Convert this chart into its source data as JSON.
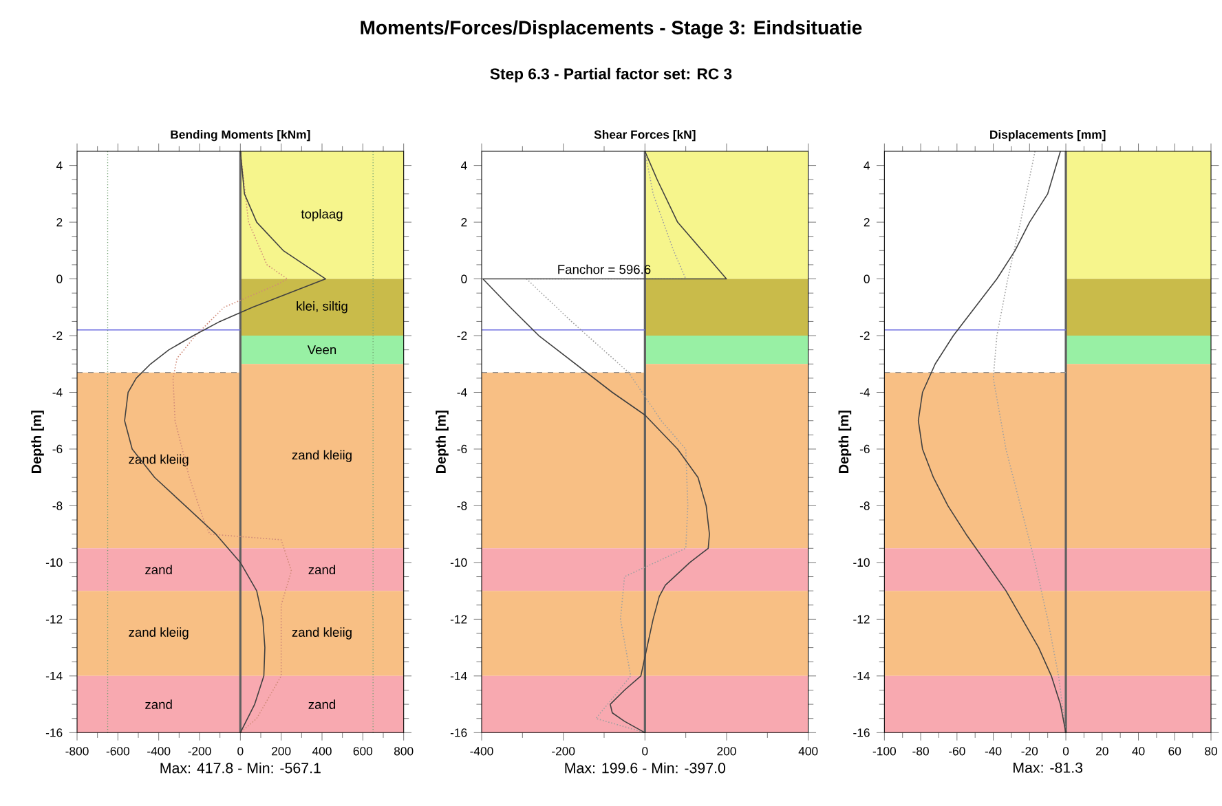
{
  "chart_data": [
    {
      "type": "line",
      "title": "Bending Moments [kNm]",
      "xlabel": "Max: 417.8 - Min: -567.1",
      "ylabel": "Depth [m]",
      "annotations": [
        "Moments/Forces/Displacements - Stage 3: Eindsituatie",
        "Step 6.3 - Partial factor set: RC 3"
      ],
      "xlim": [
        -800,
        800
      ],
      "ylim": [
        -16,
        4.5
      ],
      "xticks": [
        -800,
        -600,
        -400,
        -200,
        0,
        200,
        400,
        600,
        800
      ],
      "yticks": [
        -16,
        -14,
        -12,
        -10,
        -8,
        -6,
        -4,
        -2,
        0,
        2,
        4
      ],
      "bands": [
        {
          "axis": "y",
          "from": 0,
          "to": 4.5,
          "label": "toplaag",
          "color": "#f6f58c"
        },
        {
          "axis": "y",
          "from": -2,
          "to": 0,
          "label": "klei, siltig",
          "color": "#c9bb4a"
        },
        {
          "axis": "y",
          "from": -3,
          "to": -2,
          "label": "Veen",
          "color": "#98f0a4"
        },
        {
          "axis": "y",
          "from": -9.5,
          "to": -3,
          "label": "zand kleiig",
          "color": "#f8bf84"
        },
        {
          "axis": "y",
          "from": -11,
          "to": -9.5,
          "label": "zand",
          "color": "#f8a9b0"
        },
        {
          "axis": "y",
          "from": -14,
          "to": -11,
          "label": "zand kleiig",
          "color": "#f8bf84"
        },
        {
          "axis": "y",
          "from": -16,
          "to": -14,
          "label": "zand",
          "color": "#f8a9b0"
        }
      ],
      "ref_lines": [
        {
          "axis": "x",
          "value": -650,
          "color": "#70a070",
          "line_style": "dotted"
        },
        {
          "axis": "x",
          "value": 650,
          "color": "#70a070",
          "line_style": "dotted"
        },
        {
          "axis": "x",
          "value": 0,
          "color": "#606060",
          "line_style": "solid"
        },
        {
          "axis": "y",
          "value": -1.8,
          "color": "#6a6ae0",
          "line_style": "solid"
        },
        {
          "axis": "y",
          "value": -3.3,
          "color": "#909090",
          "line_style": "dashed"
        }
      ],
      "series": [
        {
          "color": "#d08a78",
          "line_style": "dotted",
          "x": [
            0,
            40,
            130,
            230,
            180,
            -80,
            -220,
            -310,
            -330,
            -320,
            -250,
            -180,
            -150,
            200,
            250,
            200,
            200,
            80,
            0
          ],
          "values": [
            4.5,
            2,
            0.5,
            0,
            -0.2,
            -1,
            -2,
            -2.8,
            -3.5,
            -5,
            -7,
            -8.5,
            -9,
            -9.2,
            -10.3,
            -11.5,
            -14,
            -15.5,
            -16
          ]
        },
        {
          "color": "#404040",
          "line_style": "solid",
          "x": [
            0,
            20,
            80,
            210,
            417.8,
            60,
            -100,
            -230,
            -350,
            -440,
            -510,
            -550,
            -567.1,
            -530,
            -420,
            -270,
            -120,
            0,
            80,
            110,
            120,
            115,
            70,
            0
          ],
          "values": [
            4.5,
            3,
            2,
            1,
            0,
            -1,
            -1.5,
            -2,
            -2.5,
            -3,
            -3.5,
            -4,
            -5,
            -6,
            -7,
            -8,
            -9,
            -10,
            -11,
            -12,
            -13,
            -14,
            -15,
            -16
          ]
        }
      ]
    },
    {
      "type": "line",
      "title": "Shear Forces [kN]",
      "xlabel": "Max: 199.6 - Min: -397.0",
      "ylabel": "Depth [m]",
      "annotations": [
        {
          "text": "Fanchor = 596.6",
          "x": -100,
          "y": 0
        }
      ],
      "xlim": [
        -400,
        400
      ],
      "ylim": [
        -16,
        4.5
      ],
      "xticks": [
        -400,
        -200,
        0,
        200,
        400
      ],
      "yticks": [
        -16,
        -14,
        -12,
        -10,
        -8,
        -6,
        -4,
        -2,
        0,
        2,
        4
      ],
      "bands": [
        {
          "axis": "y",
          "from": 0,
          "to": 4.5,
          "color": "#f6f58c"
        },
        {
          "axis": "y",
          "from": -2,
          "to": 0,
          "color": "#c9bb4a"
        },
        {
          "axis": "y",
          "from": -3,
          "to": -2,
          "color": "#98f0a4"
        },
        {
          "axis": "y",
          "from": -9.5,
          "to": -3,
          "color": "#f8bf84"
        },
        {
          "axis": "y",
          "from": -11,
          "to": -9.5,
          "color": "#f8a9b0"
        },
        {
          "axis": "y",
          "from": -14,
          "to": -11,
          "color": "#f8bf84"
        },
        {
          "axis": "y",
          "from": -16,
          "to": -14,
          "color": "#f8a9b0"
        }
      ],
      "ref_lines": [
        {
          "axis": "x",
          "value": 0,
          "color": "#606060",
          "line_style": "solid"
        },
        {
          "axis": "y",
          "value": -1.8,
          "color": "#6a6ae0",
          "line_style": "solid"
        },
        {
          "axis": "y",
          "value": -3.3,
          "color": "#909090",
          "line_style": "dashed"
        }
      ],
      "series": [
        {
          "color": "#a0a0a0",
          "line_style": "dotted",
          "x": [
            0,
            20,
            70,
            100,
            -290,
            -180,
            -40,
            40,
            100,
            105,
            100,
            -50,
            -60,
            -35,
            -120,
            0
          ],
          "values": [
            4.5,
            3,
            1,
            0,
            0,
            -1.5,
            -3.3,
            -5,
            -6,
            -8,
            -9.5,
            -10.5,
            -12,
            -14,
            -15.5,
            -16
          ]
        },
        {
          "color": "#404040",
          "line_style": "solid",
          "x": [
            0,
            30,
            80,
            140,
            199.6,
            -397.0,
            -330,
            -260,
            -170,
            -80,
            0,
            80,
            130,
            150,
            158,
            155,
            110,
            50,
            35,
            20,
            5,
            -10,
            -50,
            -85,
            -80,
            -50,
            0
          ],
          "values": [
            4.5,
            3.5,
            2,
            1,
            0,
            0,
            -1,
            -2,
            -3,
            -4,
            -4.8,
            -6,
            -7,
            -8,
            -9,
            -9.5,
            -10,
            -10.8,
            -11.2,
            -12,
            -13,
            -14,
            -14.5,
            -15,
            -15.3,
            -15.6,
            -16
          ]
        }
      ]
    },
    {
      "type": "line",
      "title": "Displacements [mm]",
      "xlabel": "Max: -81.3",
      "ylabel": "Depth [m]",
      "xlim": [
        -100,
        80
      ],
      "ylim": [
        -16,
        4.5
      ],
      "xticks": [
        -100,
        -80,
        -60,
        -40,
        -20,
        0,
        20,
        40,
        60,
        80
      ],
      "yticks": [
        -16,
        -14,
        -12,
        -10,
        -8,
        -6,
        -4,
        -2,
        0,
        2,
        4
      ],
      "bands": [
        {
          "axis": "y",
          "from": 0,
          "to": 4.5,
          "color": "#f6f58c"
        },
        {
          "axis": "y",
          "from": -2,
          "to": 0,
          "color": "#c9bb4a"
        },
        {
          "axis": "y",
          "from": -3,
          "to": -2,
          "color": "#98f0a4"
        },
        {
          "axis": "y",
          "from": -9.5,
          "to": -3,
          "color": "#f8bf84"
        },
        {
          "axis": "y",
          "from": -11,
          "to": -9.5,
          "color": "#f8a9b0"
        },
        {
          "axis": "y",
          "from": -14,
          "to": -11,
          "color": "#f8bf84"
        },
        {
          "axis": "y",
          "from": -16,
          "to": -14,
          "color": "#f8a9b0"
        }
      ],
      "ref_lines": [
        {
          "axis": "x",
          "value": 0,
          "color": "#606060",
          "line_style": "solid"
        },
        {
          "axis": "y",
          "value": -1.8,
          "color": "#6a6ae0",
          "line_style": "solid"
        },
        {
          "axis": "y",
          "value": -3.3,
          "color": "#909090",
          "line_style": "dashed"
        }
      ],
      "series": [
        {
          "color": "#a0a0a0",
          "line_style": "dotted",
          "x": [
            -17,
            -25,
            -32,
            -38,
            -40,
            -33,
            -25,
            -17,
            -10,
            -4,
            0
          ],
          "values": [
            4.5,
            2,
            0,
            -2,
            -3.5,
            -6,
            -8,
            -10,
            -12,
            -14,
            -16
          ]
        },
        {
          "color": "#404040",
          "line_style": "solid",
          "x": [
            -3,
            -10,
            -20,
            -28,
            -38,
            -50,
            -62,
            -72,
            -79,
            -81.3,
            -79,
            -73,
            -65,
            -55,
            -44,
            -33,
            -24,
            -15,
            -8,
            -3,
            0
          ],
          "values": [
            4.5,
            3,
            2,
            1,
            0,
            -1,
            -2,
            -3,
            -4,
            -5,
            -6,
            -7,
            -8,
            -9,
            -10,
            -11,
            -12,
            -13,
            -14,
            -15,
            -16
          ]
        }
      ]
    }
  ]
}
